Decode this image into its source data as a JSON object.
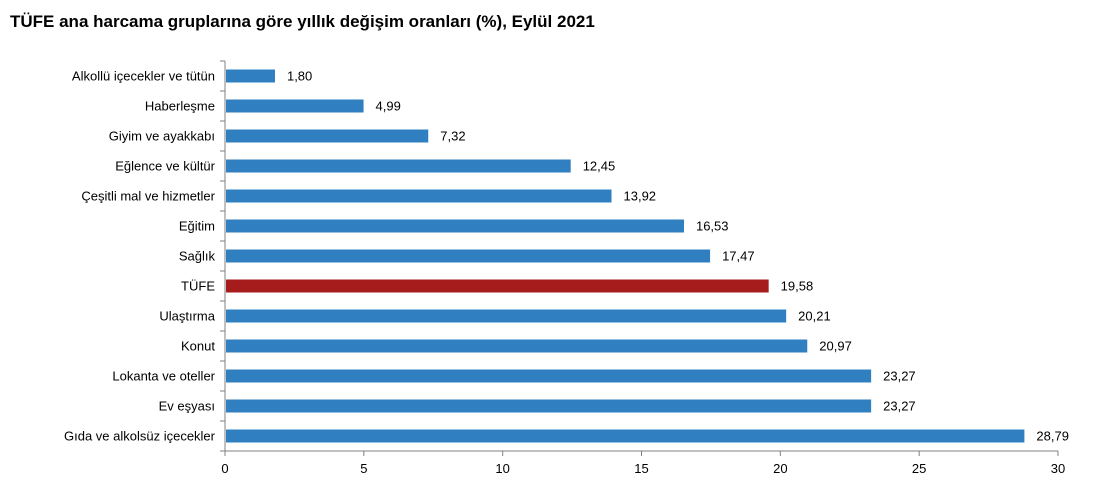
{
  "chart_data": {
    "type": "bar",
    "orientation": "horizontal",
    "title": "TÜFE ana harcama gruplarına göre yıllık değişim oranları (%), Eylül 2021",
    "categories": [
      "Alkollü içecekler ve tütün",
      "Haberleşme",
      "Giyim ve ayakkabı",
      "Eğlence ve kültür",
      "Çeşitli mal ve hizmetler",
      "Eğitim",
      "Sağlık",
      "TÜFE",
      "Ulaştırma",
      "Konut",
      "Lokanta ve oteller",
      "Ev eşyası",
      "Gıda ve alkolsüz içecekler"
    ],
    "values": [
      1.8,
      4.99,
      7.32,
      12.45,
      13.92,
      16.53,
      17.47,
      19.58,
      20.21,
      20.97,
      23.27,
      23.27,
      28.79
    ],
    "value_labels": [
      "1,80",
      "4,99",
      "7,32",
      "12,45",
      "13,92",
      "16,53",
      "17,47",
      "19,58",
      "20,21",
      "20,97",
      "23,27",
      "23,27",
      "28,79"
    ],
    "highlight_category": "TÜFE",
    "xlim": [
      0,
      30
    ],
    "xticks": [
      0,
      5,
      10,
      15,
      20,
      25,
      30
    ],
    "xlabel": "",
    "ylabel": "",
    "grid": false,
    "colors": {
      "bar": "#2f7fc1",
      "highlight": "#a61c1c",
      "axis": "#808080"
    }
  }
}
